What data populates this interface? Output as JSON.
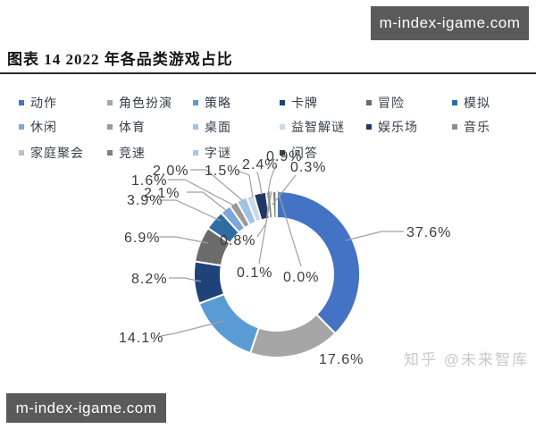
{
  "watermark_top": {
    "text": "m-index-igame.com"
  },
  "watermark_bottom": {
    "text": "m-index-igame.com"
  },
  "source_watermark": {
    "text": "知乎 @未来智库"
  },
  "title": {
    "text": "图表 14 2022 年各品类游戏占比"
  },
  "chart_data": {
    "type": "pie",
    "subtype": "donut",
    "title": "图表 14 2022 年各品类游戏占比",
    "legend_position": "top",
    "direction": "clockwise",
    "start_angle_deg": 0,
    "categories": [
      "动作",
      "角色扮演",
      "策略",
      "卡牌",
      "冒险",
      "模拟",
      "休闲",
      "体育",
      "桌面",
      "益智解谜",
      "娱乐场",
      "音乐",
      "家庭聚会",
      "竞速",
      "字谜",
      "问答"
    ],
    "values": [
      37.6,
      17.6,
      14.1,
      8.2,
      6.9,
      3.9,
      2.1,
      1.6,
      2.0,
      1.5,
      2.4,
      0.9,
      0.3,
      0.8,
      0.1,
      0.0
    ],
    "labels": [
      "37.6%",
      "17.6%",
      "14.1%",
      "8.2%",
      "6.9%",
      "3.9%",
      "2.1%",
      "1.6%",
      "2.0%",
      "1.5%",
      "2.4%",
      "0.9%",
      "0.3%",
      "0.8%",
      "0.1%",
      "0.0%"
    ],
    "colors": [
      "#4472C4",
      "#A6A6A6",
      "#5B9BD5",
      "#1F4279",
      "#6B6B6B",
      "#2E6DA4",
      "#7DA7D8",
      "#9A9A9A",
      "#9DC3E6",
      "#C9D9EC",
      "#1F3864",
      "#8C8C8C",
      "#BFBFBF",
      "#7F7F7F",
      "#A9C6E8",
      "#333F50"
    ]
  }
}
